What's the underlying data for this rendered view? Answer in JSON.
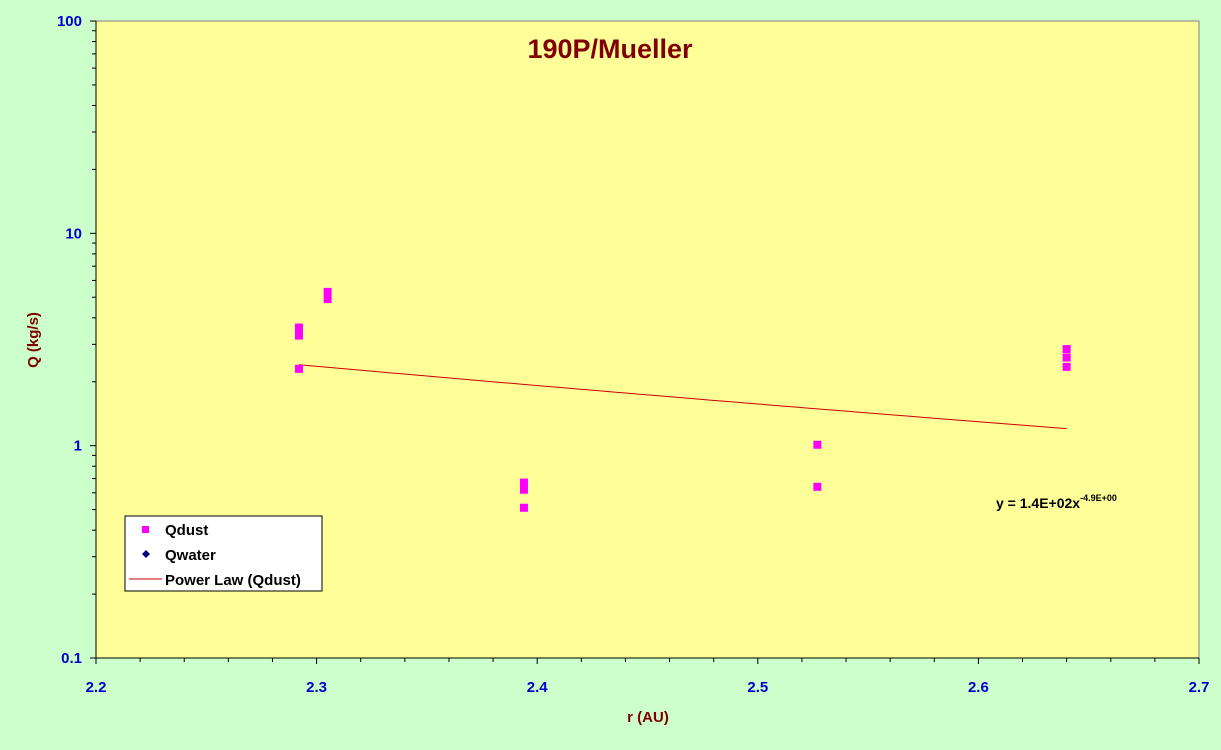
{
  "chart_data": {
    "type": "scatter",
    "title": "190P/Mueller",
    "xlabel": "r (AU)",
    "ylabel": "Q (kg/s)",
    "xlim": [
      2.2,
      2.7
    ],
    "ylim": [
      0.1,
      100
    ],
    "yscale": "log",
    "x_ticks": [
      "2.2",
      "2.3",
      "2.4",
      "2.5",
      "2.6",
      "2.7"
    ],
    "y_ticks": [
      "0.1",
      "1",
      "10",
      "100"
    ],
    "grid": false,
    "legend_position": "bottom-left",
    "series": [
      {
        "name": "Qdust",
        "marker": "square",
        "color": "#ff00ff",
        "points": [
          {
            "x": 2.292,
            "y": 3.6
          },
          {
            "x": 2.292,
            "y": 3.3
          },
          {
            "x": 2.292,
            "y": 2.3
          },
          {
            "x": 2.305,
            "y": 5.3
          },
          {
            "x": 2.305,
            "y": 4.9
          },
          {
            "x": 2.394,
            "y": 0.67
          },
          {
            "x": 2.394,
            "y": 0.62
          },
          {
            "x": 2.394,
            "y": 0.51
          },
          {
            "x": 2.527,
            "y": 1.01
          },
          {
            "x": 2.527,
            "y": 0.64
          },
          {
            "x": 2.64,
            "y": 2.85
          },
          {
            "x": 2.64,
            "y": 2.6
          },
          {
            "x": 2.64,
            "y": 2.35
          }
        ]
      },
      {
        "name": "Qwater",
        "marker": "diamond",
        "color": "#000080",
        "points": []
      }
    ],
    "trendline": {
      "name": "Power Law (Qdust)",
      "type": "power",
      "color": "#cc0000",
      "coefficient": 140,
      "exponent": -4.9,
      "x_range": [
        2.292,
        2.64
      ],
      "equation_label": "y = 1.4E+02x",
      "equation_exponent": "-4.9E+00"
    }
  }
}
